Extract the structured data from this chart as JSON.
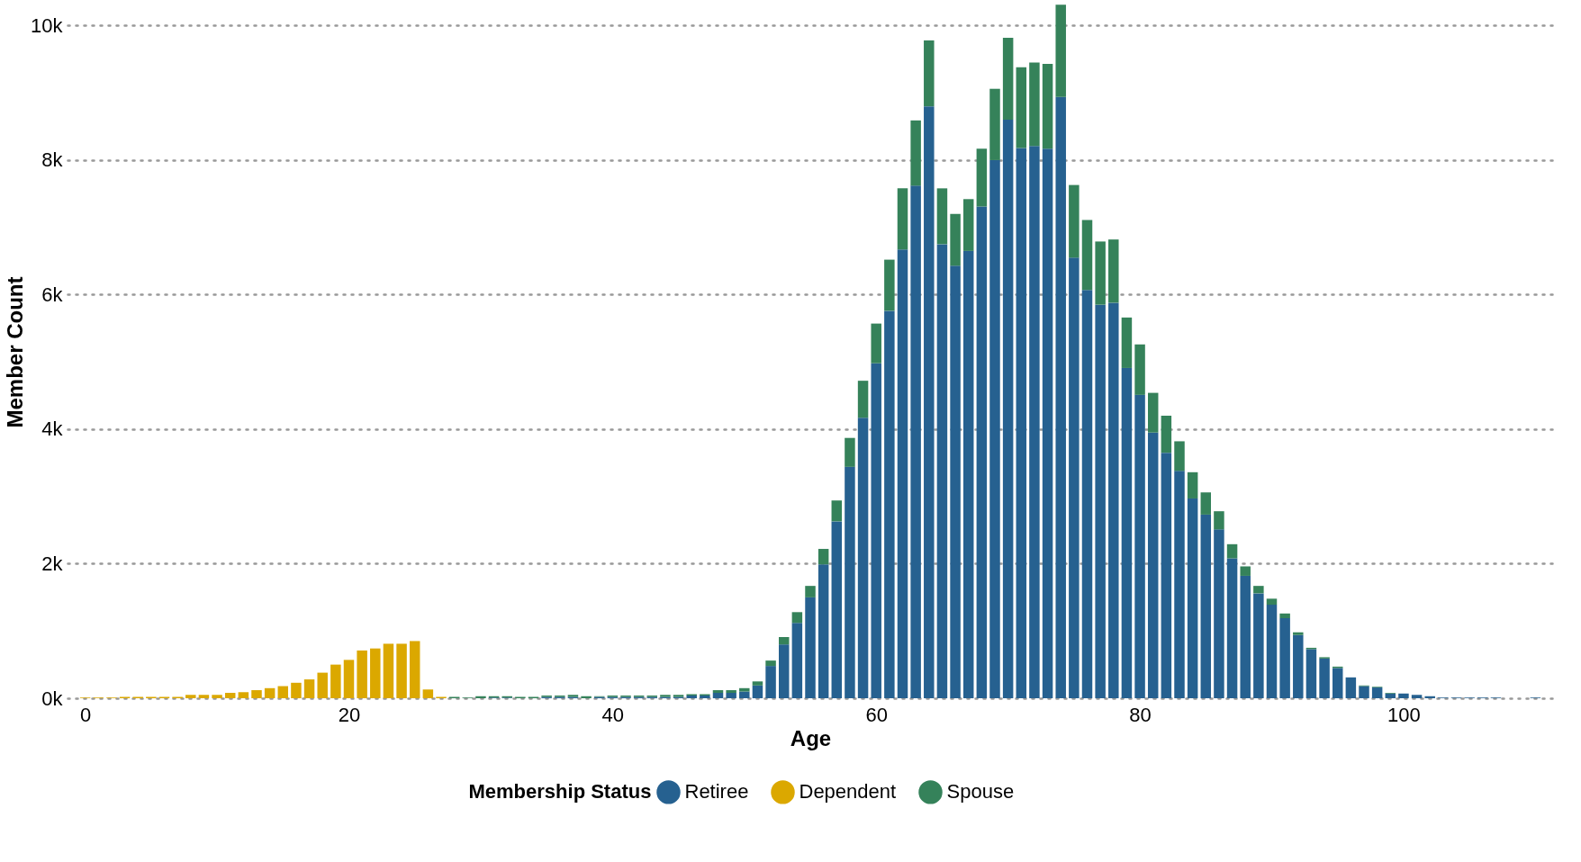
{
  "chart_data": {
    "type": "bar",
    "stacked": true,
    "xlabel": "Age",
    "ylabel": "Member Count",
    "legend_title": "Membership Status",
    "legend": "bottom",
    "grid": "y",
    "x": [
      0,
      1,
      2,
      3,
      4,
      5,
      6,
      7,
      8,
      9,
      10,
      11,
      12,
      13,
      14,
      15,
      16,
      17,
      18,
      19,
      20,
      21,
      22,
      23,
      24,
      25,
      26,
      27,
      28,
      29,
      30,
      31,
      32,
      33,
      34,
      35,
      36,
      37,
      38,
      39,
      40,
      41,
      42,
      43,
      44,
      45,
      46,
      47,
      48,
      49,
      50,
      51,
      52,
      53,
      54,
      55,
      56,
      57,
      58,
      59,
      60,
      61,
      62,
      63,
      64,
      65,
      66,
      67,
      68,
      69,
      70,
      71,
      72,
      73,
      74,
      75,
      76,
      77,
      78,
      79,
      80,
      81,
      82,
      83,
      84,
      85,
      86,
      87,
      88,
      89,
      90,
      91,
      92,
      93,
      94,
      95,
      96,
      97,
      98,
      99,
      100,
      101,
      102,
      103,
      104,
      105,
      106,
      107,
      108,
      109,
      110
    ],
    "xlim": [
      -1,
      111
    ],
    "xticks": [
      0,
      20,
      40,
      60,
      80,
      100
    ],
    "ylim": [
      0,
      10300
    ],
    "yticks": [
      {
        "value": 0,
        "label": "0k"
      },
      {
        "value": 2000,
        "label": "2k"
      },
      {
        "value": 4000,
        "label": "4k"
      },
      {
        "value": 6000,
        "label": "6k"
      },
      {
        "value": 8000,
        "label": "8k"
      },
      {
        "value": 10000,
        "label": "10k"
      }
    ],
    "series": [
      {
        "name": "Retiree",
        "color": "#266190",
        "values": [
          null,
          null,
          null,
          null,
          null,
          null,
          null,
          null,
          null,
          null,
          null,
          null,
          null,
          null,
          null,
          null,
          null,
          null,
          null,
          null,
          null,
          null,
          null,
          null,
          null,
          null,
          null,
          null,
          null,
          null,
          null,
          10,
          10,
          null,
          null,
          20,
          20,
          20,
          null,
          20,
          20,
          20,
          20,
          20,
          20,
          20,
          40,
          40,
          80,
          80,
          100,
          190,
          480,
          800,
          1120,
          1500,
          1990,
          2630,
          3440,
          4170,
          4980,
          5760,
          6670,
          7620,
          8800,
          6750,
          6430,
          6650,
          7310,
          8000,
          8600,
          8180,
          8210,
          8170,
          8940,
          6550,
          6070,
          5850,
          5880,
          4910,
          4510,
          3950,
          3650,
          3380,
          2970,
          2730,
          2510,
          2080,
          1820,
          1560,
          1390,
          1190,
          940,
          730,
          590,
          450,
          310,
          180,
          160,
          70,
          70,
          50,
          30,
          10,
          10,
          10,
          10,
          10,
          null,
          null,
          10
        ]
      },
      {
        "name": "Dependent",
        "color": "#dba800",
        "values": [
          10,
          10,
          10,
          20,
          20,
          20,
          20,
          20,
          50,
          50,
          50,
          80,
          90,
          120,
          150,
          180,
          230,
          280,
          380,
          500,
          570,
          710,
          740,
          810,
          810,
          850,
          130,
          20,
          null,
          null,
          null,
          null,
          null,
          null,
          null,
          null,
          null,
          null,
          null,
          null,
          null,
          null,
          null,
          null,
          null,
          null,
          null,
          null,
          null,
          null,
          null,
          null,
          null,
          null,
          null,
          null,
          null,
          null,
          null,
          null,
          null,
          null,
          null,
          null,
          null,
          null,
          null,
          null,
          null,
          null,
          null,
          null,
          null,
          null,
          null,
          null,
          null,
          null,
          null,
          null,
          null,
          null,
          null,
          null,
          null,
          null,
          null,
          null,
          null,
          null,
          null,
          null,
          null,
          null,
          null,
          null,
          null,
          null,
          null,
          null,
          null,
          null,
          null,
          null,
          null,
          null,
          null,
          null,
          null,
          null,
          null
        ]
      },
      {
        "name": "Spouse",
        "color": "#35825a",
        "values": [
          null,
          null,
          null,
          null,
          null,
          null,
          null,
          null,
          null,
          null,
          null,
          null,
          null,
          null,
          null,
          null,
          null,
          null,
          null,
          null,
          null,
          null,
          null,
          null,
          null,
          null,
          null,
          null,
          20,
          10,
          30,
          20,
          20,
          20,
          20,
          20,
          20,
          30,
          30,
          10,
          20,
          20,
          20,
          20,
          30,
          30,
          20,
          20,
          40,
          40,
          50,
          60,
          80,
          110,
          160,
          170,
          230,
          310,
          430,
          550,
          590,
          760,
          910,
          970,
          980,
          830,
          770,
          770,
          860,
          1060,
          1220,
          1200,
          1240,
          1260,
          1370,
          1080,
          1040,
          940,
          940,
          750,
          750,
          590,
          550,
          440,
          390,
          330,
          270,
          210,
          140,
          110,
          90,
          70,
          40,
          20,
          20,
          20,
          null,
          10,
          10,
          10,
          null,
          null,
          null,
          null,
          null,
          null,
          null,
          null,
          null,
          null,
          null
        ]
      }
    ]
  }
}
